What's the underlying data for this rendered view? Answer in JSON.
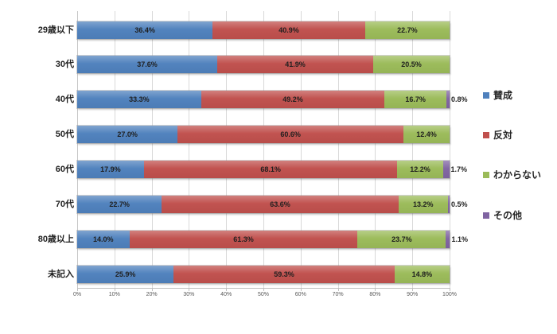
{
  "chart_data": {
    "type": "bar",
    "variant": "horizontal-stacked",
    "title": "",
    "xlabel": "",
    "ylabel": "",
    "xlim": [
      0,
      100
    ],
    "grid": true,
    "legend_position": "right",
    "data_label_format": "one-decimal-percent",
    "categories": [
      "29歳以下",
      "30代",
      "40代",
      "50代",
      "60代",
      "70代",
      "80歳以上",
      "未記入"
    ],
    "series": [
      {
        "name": "賛成",
        "color": "#4F81BD",
        "values": [
          36.4,
          37.6,
          33.3,
          27.0,
          17.9,
          22.7,
          14.0,
          25.9
        ]
      },
      {
        "name": "反対",
        "color": "#C0504D",
        "values": [
          40.9,
          41.9,
          49.2,
          60.6,
          68.1,
          63.6,
          61.3,
          59.3
        ]
      },
      {
        "name": "わからない",
        "color": "#9BBB59",
        "values": [
          22.7,
          20.5,
          16.7,
          12.4,
          12.2,
          13.2,
          23.7,
          14.8
        ]
      },
      {
        "name": "その他",
        "color": "#8064A2",
        "values": [
          0,
          0,
          0.8,
          0,
          1.7,
          0.5,
          1.1,
          0
        ]
      }
    ],
    "x_ticks": [
      "0%",
      "10%",
      "20%",
      "30%",
      "40%",
      "50%",
      "60%",
      "70%",
      "80%",
      "90%",
      "100%"
    ]
  },
  "style_colors": {
    "gridline": "#D9D9D9",
    "axis_line": "#BFBFBF",
    "tick_label": "#595959",
    "data_label": "#1F1F1F",
    "category_label": "#1F1F1F",
    "background": "#FFFFFF"
  }
}
